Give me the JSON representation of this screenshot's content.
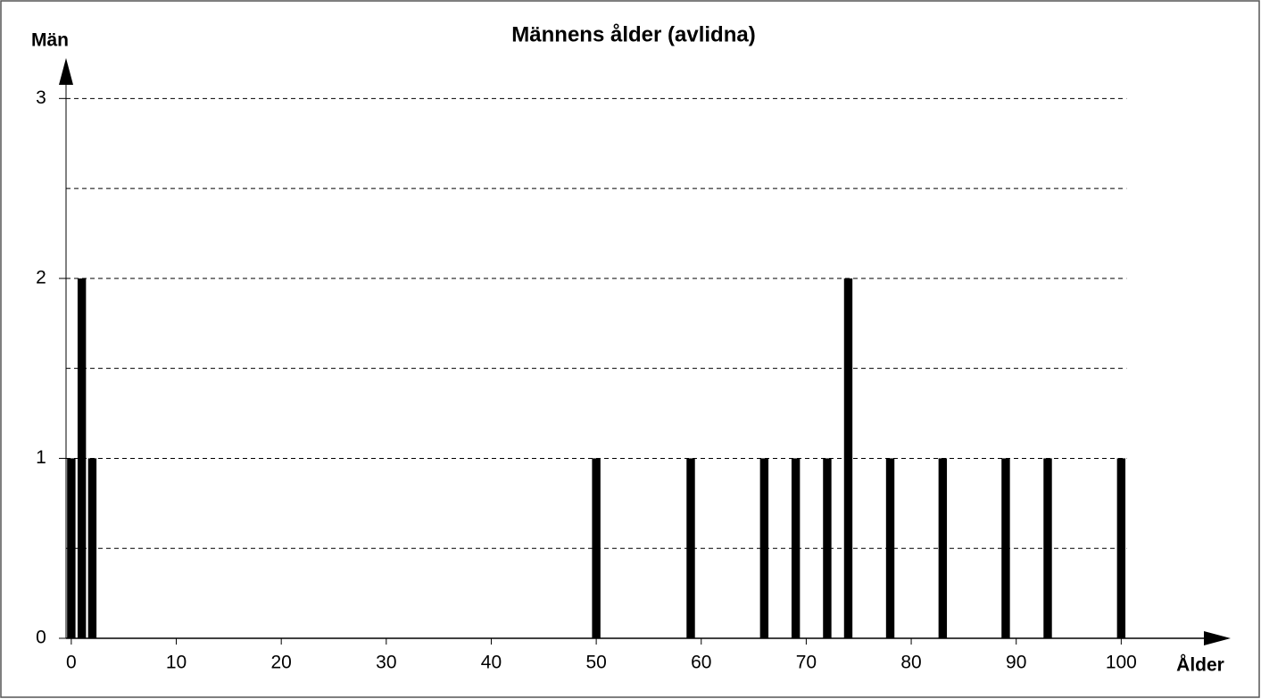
{
  "chart_data": {
    "type": "bar",
    "title": "Männens ålder (avlidna)",
    "y_label": "Män",
    "x_label": "Ålder",
    "x": [
      0,
      1,
      2,
      50,
      59,
      66,
      69,
      72,
      74,
      78,
      83,
      89,
      93,
      100
    ],
    "values": [
      1,
      2,
      1,
      1,
      1,
      1,
      1,
      1,
      2,
      1,
      1,
      1,
      1,
      1
    ],
    "color": "#000000",
    "xlim": [
      -0.5,
      110
    ],
    "xticks": [
      0,
      10,
      20,
      30,
      40,
      50,
      60,
      70,
      80,
      90,
      100
    ],
    "ylim": [
      0,
      3.2
    ],
    "yticks": [
      0,
      1,
      2,
      3
    ],
    "ygrid": [
      0.5,
      1,
      1.5,
      2,
      2.5,
      3
    ],
    "grid": true
  }
}
